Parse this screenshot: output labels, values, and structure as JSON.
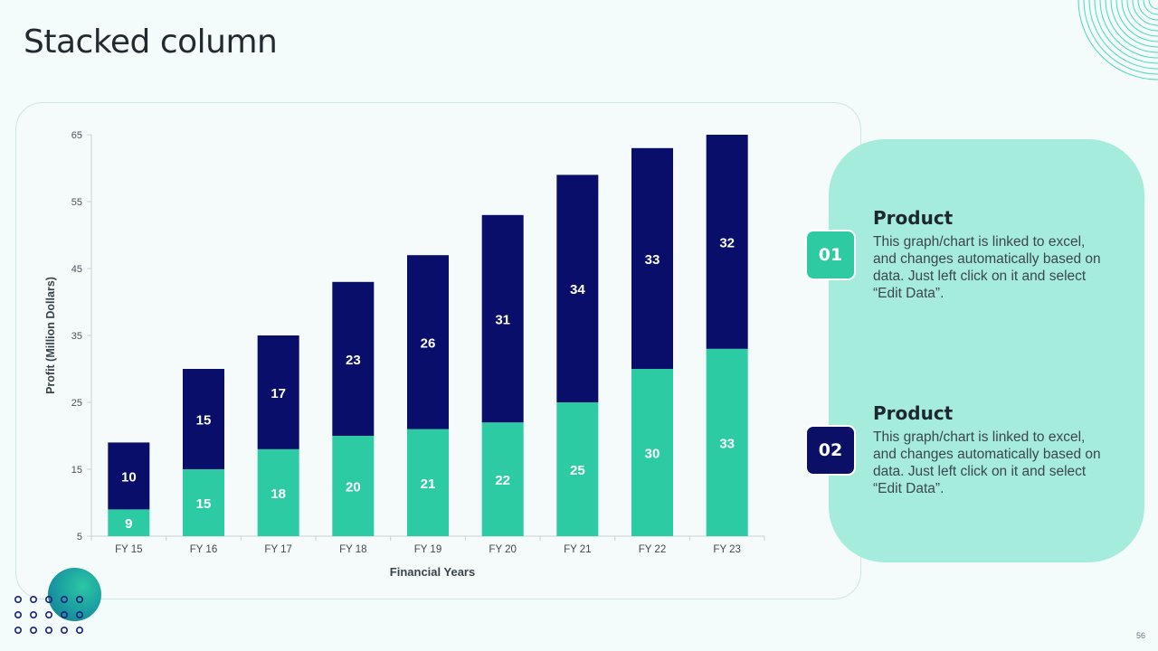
{
  "slide": {
    "title": "Stacked column",
    "page_number": "56"
  },
  "colors": {
    "background": "#f3fbfb",
    "series_bottom": "#2ccba4",
    "series_top": "#0a0e6b",
    "panel": "#a6ecdc",
    "badge_1": "#2ecba3",
    "badge_2": "#0b1066"
  },
  "chart_data": {
    "type": "bar",
    "stacked": true,
    "categories": [
      "FY 15",
      "FY 16",
      "FY 17",
      "FY 18",
      "FY 19",
      "FY 20",
      "FY 21",
      "FY 22",
      "FY 23"
    ],
    "series": [
      {
        "name": "Product 01",
        "color": "#2ccba4",
        "values": [
          9,
          15,
          18,
          20,
          21,
          22,
          25,
          30,
          33
        ]
      },
      {
        "name": "Product 02",
        "color": "#0a0e6b",
        "values": [
          10,
          15,
          17,
          23,
          26,
          31,
          34,
          33,
          32
        ]
      }
    ],
    "xlabel": "Financial Years",
    "ylabel": "Profit (Million Dollars)",
    "ylim": [
      5,
      65
    ],
    "yticks": [
      5,
      15,
      25,
      35,
      45,
      55,
      65
    ],
    "grid": false,
    "legend": "none"
  },
  "panel": {
    "items": [
      {
        "number": "01",
        "title": "Product",
        "description": "This graph/chart is linked to excel, and changes automatically based on data. Just left click on it and select “Edit Data”."
      },
      {
        "number": "02",
        "title": "Product",
        "description": "This graph/chart is linked to excel, and changes automatically based on data. Just left click on it and select “Edit Data”."
      }
    ]
  }
}
